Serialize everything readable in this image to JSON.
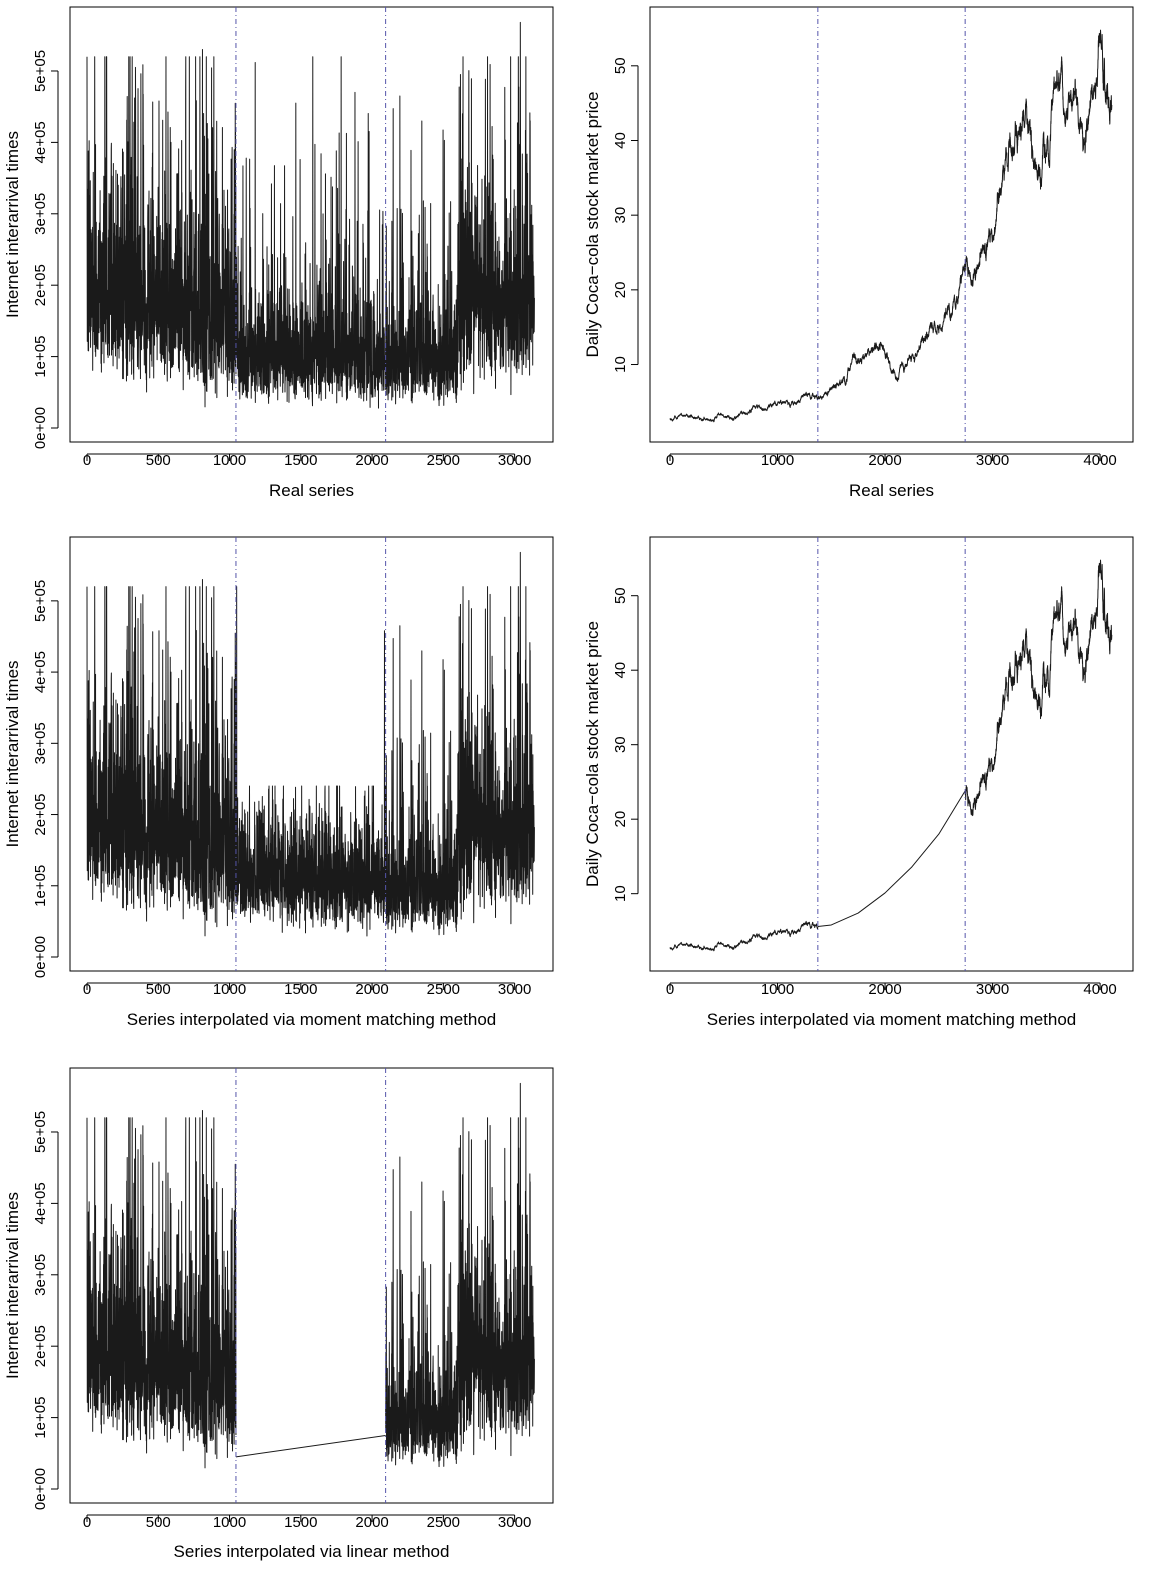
{
  "chart_data": [
    {
      "id": "p1",
      "type": "line",
      "xlabel": "Real series",
      "ylabel": "Internet interarrival times",
      "xlim": [
        0,
        3150
      ],
      "ylim": [
        0,
        570000
      ],
      "xticks": [
        0,
        500,
        1000,
        1500,
        2000,
        2500,
        3000
      ],
      "xtick_labels": [
        "0",
        "500",
        "1000",
        "1500",
        "2000",
        "2500",
        "3000"
      ],
      "yticks": [
        0,
        100000,
        200000,
        300000,
        400000,
        500000
      ],
      "ytick_labels": [
        "0e+00",
        "1e+05",
        "2e+05",
        "3e+05",
        "4e+05",
        "5e+05"
      ],
      "vlines": [
        1045,
        2095
      ],
      "n": 3140,
      "series": [
        {
          "generator": "interarrival",
          "interpolation": "none"
        }
      ]
    },
    {
      "id": "p2",
      "type": "line",
      "xlabel": "Real series",
      "ylabel": "Daily Coca−cola stock market price",
      "xlim": [
        0,
        4120
      ],
      "ylim": [
        1.5,
        56
      ],
      "xticks": [
        0,
        1000,
        2000,
        3000,
        4000
      ],
      "xtick_labels": [
        "0",
        "1000",
        "2000",
        "3000",
        "4000"
      ],
      "yticks": [
        10,
        20,
        30,
        40,
        50
      ],
      "ytick_labels": [
        "10",
        "20",
        "30",
        "40",
        "50"
      ],
      "vlines": [
        1375,
        2745
      ],
      "n": 4110,
      "series": [
        {
          "generator": "stock",
          "interpolation": "none"
        }
      ]
    },
    {
      "id": "p3",
      "type": "line",
      "xlabel": "Series interpolated via moment matching method",
      "ylabel": "Internet interarrival times",
      "xlim": [
        0,
        3150
      ],
      "ylim": [
        0,
        570000
      ],
      "xticks": [
        0,
        500,
        1000,
        1500,
        2000,
        2500,
        3000
      ],
      "xtick_labels": [
        "0",
        "500",
        "1000",
        "1500",
        "2000",
        "2500",
        "3000"
      ],
      "yticks": [
        0,
        100000,
        200000,
        300000,
        400000,
        500000
      ],
      "ytick_labels": [
        "0e+00",
        "1e+05",
        "2e+05",
        "3e+05",
        "4e+05",
        "5e+05"
      ],
      "vlines": [
        1045,
        2095
      ],
      "n": 3140,
      "series": [
        {
          "generator": "interarrival",
          "interpolation": "moment-matching"
        }
      ]
    },
    {
      "id": "p4",
      "type": "line",
      "xlabel": "Series interpolated via moment matching method",
      "ylabel": "Daily Coca−cola stock market price",
      "xlim": [
        0,
        4120
      ],
      "ylim": [
        1.5,
        56
      ],
      "xticks": [
        0,
        1000,
        2000,
        3000,
        4000
      ],
      "xtick_labels": [
        "0",
        "1000",
        "2000",
        "3000",
        "4000"
      ],
      "yticks": [
        10,
        20,
        30,
        40,
        50
      ],
      "ytick_labels": [
        "10",
        "20",
        "30",
        "40",
        "50"
      ],
      "vlines": [
        1375,
        2745
      ],
      "n": 4110,
      "series": [
        {
          "generator": "stock",
          "interpolation": "moment-matching",
          "gap_curve": [
            [
              1375,
              5.6
            ],
            [
              1500,
              5.8
            ],
            [
              1750,
              7.4
            ],
            [
              2000,
              10.1
            ],
            [
              2250,
              13.6
            ],
            [
              2500,
              18.0
            ],
            [
              2745,
              23.8
            ]
          ]
        }
      ]
    },
    {
      "id": "p5",
      "type": "line",
      "xlabel": "Series interpolated via linear method",
      "ylabel": "Internet interarrival times",
      "xlim": [
        0,
        3150
      ],
      "ylim": [
        0,
        570000
      ],
      "xticks": [
        0,
        500,
        1000,
        1500,
        2000,
        2500,
        3000
      ],
      "xtick_labels": [
        "0",
        "500",
        "1000",
        "1500",
        "2000",
        "2500",
        "3000"
      ],
      "yticks": [
        0,
        100000,
        200000,
        300000,
        400000,
        500000
      ],
      "ytick_labels": [
        "0e+00",
        "1e+05",
        "2e+05",
        "3e+05",
        "4e+05",
        "5e+05"
      ],
      "vlines": [
        1045,
        2095
      ],
      "n": 3140,
      "series": [
        {
          "generator": "interarrival",
          "interpolation": "linear",
          "gap_line": [
            [
              1045,
              45000
            ],
            [
              2095,
              75000
            ]
          ]
        }
      ]
    }
  ]
}
